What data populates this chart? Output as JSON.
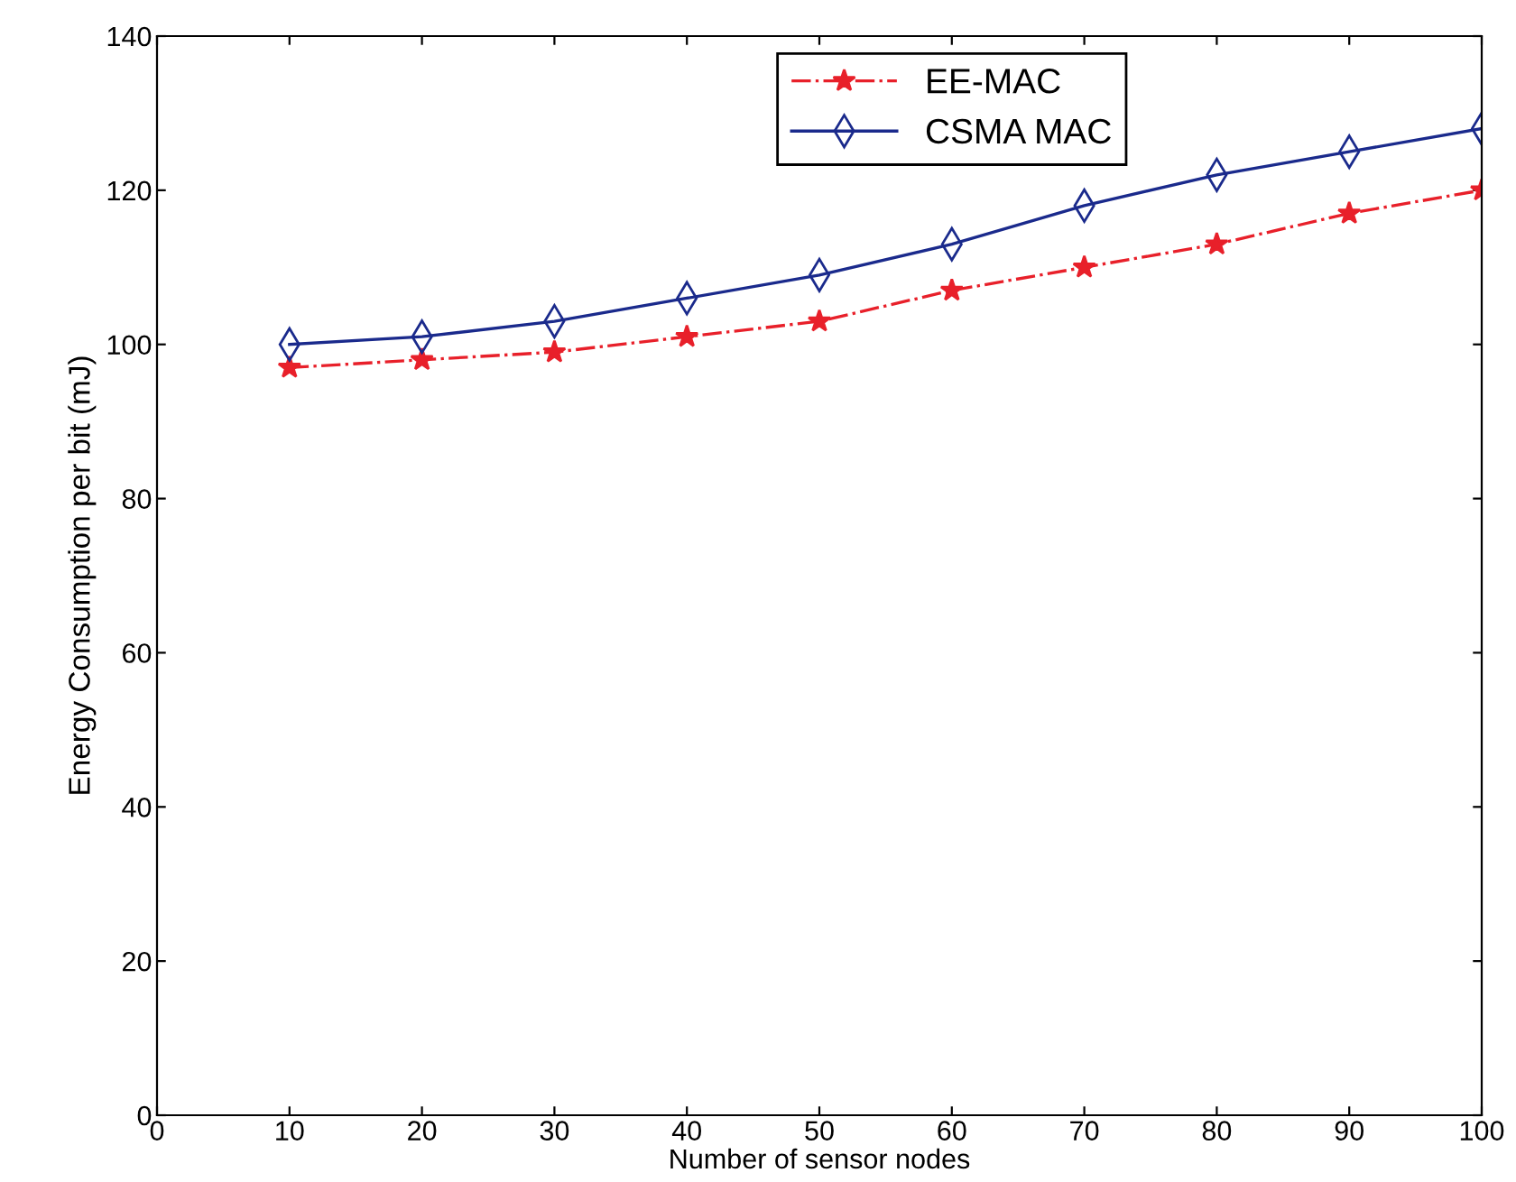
{
  "chart_data": {
    "type": "line",
    "xlabel": "Number of sensor nodes",
    "ylabel": "Energy Consumption per bit (mJ)",
    "x": [
      10,
      20,
      30,
      40,
      50,
      60,
      70,
      80,
      90,
      100
    ],
    "series": [
      {
        "name": "EE-MAC",
        "color": "#e8202a",
        "marker": "star",
        "line_style": "dashdot",
        "values": [
          97,
          98,
          99,
          101,
          103,
          107,
          110,
          113,
          117,
          120
        ]
      },
      {
        "name": "CSMA MAC",
        "color": "#1a2a8c",
        "marker": "diamond",
        "line_style": "solid",
        "values": [
          100,
          101,
          103,
          106,
          109,
          113,
          118,
          122,
          125,
          128
        ]
      }
    ],
    "xlim": [
      0,
      100
    ],
    "xticks": [
      0,
      10,
      20,
      30,
      40,
      50,
      60,
      70,
      80,
      90,
      100
    ],
    "ylim": [
      0,
      140
    ],
    "yticks": [
      0,
      20,
      40,
      60,
      80,
      100,
      120,
      140
    ],
    "grid": false,
    "legend": "top"
  }
}
